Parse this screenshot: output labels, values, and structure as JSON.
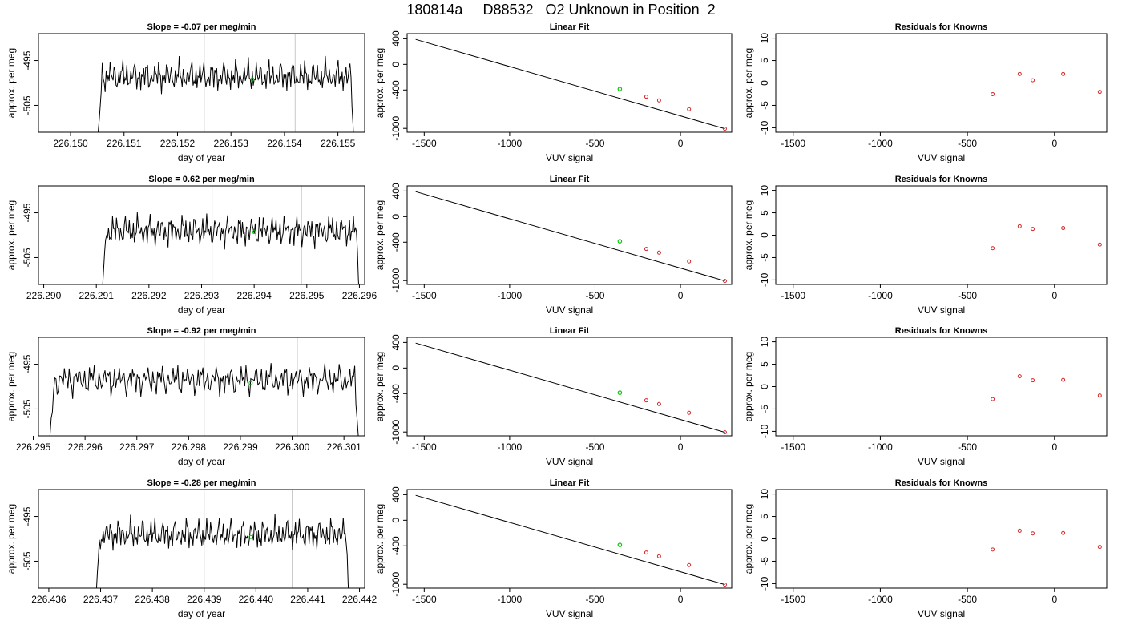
{
  "figure_title": "180814a     D88532   O2 Unknown in Position  2",
  "colors": {
    "trace": "#000000",
    "marker_line": "#c8c8c8",
    "known": "#d62728",
    "unknown": "#00cc00",
    "fit_line": "#000000"
  },
  "chart_data": [
    {
      "type": "line",
      "title": "Slope =  -0.07  per meg/min",
      "xlabel": "day of year",
      "ylabel": "approx. per meg",
      "xlim": [
        226.1494,
        226.1555
      ],
      "ylim": [
        -511,
        -489
      ],
      "xticks": [
        226.15,
        226.151,
        226.152,
        226.153,
        226.154,
        226.155
      ],
      "xtick_labels": [
        "226.150",
        "226.151",
        "226.152",
        "226.153",
        "226.154",
        "226.155"
      ],
      "yticks": [
        -495,
        -505
      ],
      "ytick_labels": [
        "-495",
        "-505"
      ],
      "trace_start": 226.1505,
      "trace_end": 226.1553,
      "trace_level": -498.5,
      "vlines": [
        226.1525,
        226.1542
      ],
      "unknown_point": [
        226.1534,
        -499.2
      ]
    },
    {
      "type": "scatter",
      "title": "Linear Fit",
      "xlabel": "VUV signal",
      "ylabel": "approx. per meg",
      "xlim": [
        -1600,
        300
      ],
      "ylim": [
        -1060,
        480
      ],
      "xticks": [
        -1500,
        -1000,
        -500,
        0
      ],
      "xtick_labels": [
        "-1500",
        "-1000",
        "-500",
        "0"
      ],
      "yticks": [
        400,
        0,
        -400,
        -1000
      ],
      "ytick_labels": [
        "400",
        "0",
        "-400",
        "-1000"
      ],
      "line": [
        [
          -1550,
          390
        ],
        [
          260,
          -1005
        ]
      ],
      "knowns": [
        [
          -200,
          -505
        ],
        [
          -125,
          -563
        ],
        [
          50,
          -700
        ],
        [
          260,
          -1005
        ]
      ],
      "unknown": [
        [
          -355,
          -385
        ]
      ]
    },
    {
      "type": "scatter",
      "title": "Residuals for Knowns",
      "xlabel": "VUV signal",
      "ylabel": "approx. per meg",
      "xlim": [
        -1600,
        300
      ],
      "ylim": [
        -11,
        11
      ],
      "xticks": [
        -1500,
        -1000,
        -500,
        0
      ],
      "xtick_labels": [
        "-1500",
        "-1000",
        "-500",
        "0"
      ],
      "yticks": [
        10,
        5,
        0,
        -5,
        -10
      ],
      "ytick_labels": [
        "10",
        "5",
        "0",
        "-5",
        "-10"
      ],
      "points": [
        [
          -355,
          -2.5
        ],
        [
          -200,
          2.0
        ],
        [
          -125,
          0.6
        ],
        [
          50,
          2.0
        ],
        [
          260,
          -2.0
        ]
      ]
    },
    {
      "type": "line",
      "title": "Slope =  0.62  per meg/min",
      "xlabel": "day of year",
      "ylabel": "approx. per meg",
      "xlim": [
        226.2899,
        226.2961
      ],
      "ylim": [
        -511,
        -489
      ],
      "xticks": [
        226.29,
        226.291,
        226.292,
        226.293,
        226.294,
        226.295,
        226.296
      ],
      "xtick_labels": [
        "226.290",
        "226.291",
        "226.292",
        "226.293",
        "226.294",
        "226.295",
        "226.296"
      ],
      "yticks": [
        -495,
        -505
      ],
      "ytick_labels": [
        "-495",
        "-505"
      ],
      "trace_start": 226.2911,
      "trace_end": 226.296,
      "trace_level": -499.0,
      "vlines": [
        226.2932,
        226.2949
      ],
      "unknown_point": [
        226.294,
        -499.3
      ]
    },
    {
      "type": "scatter",
      "title": "Linear Fit",
      "xlabel": "VUV signal",
      "ylabel": "approx. per meg",
      "xlim": [
        -1600,
        300
      ],
      "ylim": [
        -1060,
        480
      ],
      "xticks": [
        -1500,
        -1000,
        -500,
        0
      ],
      "xtick_labels": [
        "-1500",
        "-1000",
        "-500",
        "0"
      ],
      "yticks": [
        400,
        0,
        -400,
        -1000
      ],
      "ytick_labels": [
        "400",
        "0",
        "-400",
        "-1000"
      ],
      "line": [
        [
          -1550,
          390
        ],
        [
          260,
          -1005
        ]
      ],
      "knowns": [
        [
          -200,
          -505
        ],
        [
          -125,
          -563
        ],
        [
          50,
          -700
        ],
        [
          260,
          -1005
        ]
      ],
      "unknown": [
        [
          -355,
          -385
        ]
      ]
    },
    {
      "type": "scatter",
      "title": "Residuals for Knowns",
      "xlabel": "VUV signal",
      "ylabel": "approx. per meg",
      "xlim": [
        -1600,
        300
      ],
      "ylim": [
        -11,
        11
      ],
      "xticks": [
        -1500,
        -1000,
        -500,
        0
      ],
      "xtick_labels": [
        "-1500",
        "-1000",
        "-500",
        "0"
      ],
      "yticks": [
        10,
        5,
        0,
        -5,
        -10
      ],
      "ytick_labels": [
        "10",
        "5",
        "0",
        "-5",
        "-10"
      ],
      "points": [
        [
          -355,
          -2.9
        ],
        [
          -200,
          2.0
        ],
        [
          -125,
          1.4
        ],
        [
          50,
          1.6
        ],
        [
          260,
          -2.1
        ]
      ]
    },
    {
      "type": "line",
      "title": "Slope =  -0.92  per meg/min",
      "xlabel": "day of year",
      "ylabel": "approx. per meg",
      "xlim": [
        226.2951,
        226.3014
      ],
      "ylim": [
        -511,
        -489
      ],
      "xticks": [
        226.295,
        226.296,
        226.297,
        226.298,
        226.299,
        226.3,
        226.301
      ],
      "xtick_labels": [
        "226.295",
        "226.296",
        "226.297",
        "226.298",
        "226.299",
        "226.300",
        "226.301"
      ],
      "yticks": [
        -495,
        -505
      ],
      "ytick_labels": [
        "-495",
        "-505"
      ],
      "trace_start": 226.2953,
      "trace_end": 226.3013,
      "trace_level": -498.5,
      "vlines": [
        226.2983,
        226.3001
      ],
      "unknown_point": [
        226.2992,
        -499.2
      ]
    },
    {
      "type": "scatter",
      "title": "Linear Fit",
      "xlabel": "VUV signal",
      "ylabel": "approx. per meg",
      "xlim": [
        -1600,
        300
      ],
      "ylim": [
        -1060,
        480
      ],
      "xticks": [
        -1500,
        -1000,
        -500,
        0
      ],
      "xtick_labels": [
        "-1500",
        "-1000",
        "-500",
        "0"
      ],
      "yticks": [
        400,
        0,
        -400,
        -1000
      ],
      "ytick_labels": [
        "400",
        "0",
        "-400",
        "-1000"
      ],
      "line": [
        [
          -1550,
          390
        ],
        [
          260,
          -1005
        ]
      ],
      "knowns": [
        [
          -200,
          -505
        ],
        [
          -125,
          -563
        ],
        [
          50,
          -700
        ],
        [
          260,
          -1005
        ]
      ],
      "unknown": [
        [
          -355,
          -385
        ]
      ]
    },
    {
      "type": "scatter",
      "title": "Residuals for Knowns",
      "xlabel": "VUV signal",
      "ylabel": "approx. per meg",
      "xlim": [
        -1600,
        300
      ],
      "ylim": [
        -11,
        11
      ],
      "xticks": [
        -1500,
        -1000,
        -500,
        0
      ],
      "xtick_labels": [
        "-1500",
        "-1000",
        "-500",
        "0"
      ],
      "yticks": [
        10,
        5,
        0,
        -5,
        -10
      ],
      "ytick_labels": [
        "10",
        "5",
        "0",
        "-5",
        "-10"
      ],
      "points": [
        [
          -355,
          -2.8
        ],
        [
          -200,
          2.3
        ],
        [
          -125,
          1.4
        ],
        [
          50,
          1.5
        ],
        [
          260,
          -2.0
        ]
      ]
    },
    {
      "type": "line",
      "title": "Slope =  -0.28  per meg/min",
      "xlabel": "day of year",
      "ylabel": "approx. per meg",
      "xlim": [
        226.4358,
        226.4421
      ],
      "ylim": [
        -511,
        -489
      ],
      "xticks": [
        226.436,
        226.437,
        226.438,
        226.439,
        226.44,
        226.441,
        226.442
      ],
      "xtick_labels": [
        "226.436",
        "226.437",
        "226.438",
        "226.439",
        "226.440",
        "226.441",
        "226.442"
      ],
      "yticks": [
        -495,
        -505
      ],
      "ytick_labels": [
        "-495",
        "-505"
      ],
      "trace_start": 226.4369,
      "trace_end": 226.4418,
      "trace_level": -499.0,
      "vlines": [
        226.439,
        226.4407
      ],
      "unknown_point": [
        226.4399,
        -499.6
      ]
    },
    {
      "type": "scatter",
      "title": "Linear Fit",
      "xlabel": "VUV signal",
      "ylabel": "approx. per meg",
      "xlim": [
        -1600,
        300
      ],
      "ylim": [
        -1060,
        480
      ],
      "xticks": [
        -1500,
        -1000,
        -500,
        0
      ],
      "xtick_labels": [
        "-1500",
        "-1000",
        "-500",
        "0"
      ],
      "yticks": [
        400,
        0,
        -400,
        -1000
      ],
      "ytick_labels": [
        "400",
        "0",
        "-400",
        "-1000"
      ],
      "line": [
        [
          -1550,
          390
        ],
        [
          260,
          -1005
        ]
      ],
      "knowns": [
        [
          -200,
          -505
        ],
        [
          -125,
          -563
        ],
        [
          50,
          -700
        ],
        [
          260,
          -1005
        ]
      ],
      "unknown": [
        [
          -355,
          -385
        ]
      ]
    },
    {
      "type": "scatter",
      "title": "Residuals for Knowns",
      "xlabel": "VUV signal",
      "ylabel": "approx. per meg",
      "xlim": [
        -1600,
        300
      ],
      "ylim": [
        -11,
        11
      ],
      "xticks": [
        -1500,
        -1000,
        -500,
        0
      ],
      "xtick_labels": [
        "-1500",
        "-1000",
        "-500",
        "0"
      ],
      "yticks": [
        10,
        5,
        0,
        -5,
        -10
      ],
      "ytick_labels": [
        "10",
        "5",
        "0",
        "-5",
        "-10"
      ],
      "points": [
        [
          -355,
          -2.4
        ],
        [
          -200,
          1.8
        ],
        [
          -125,
          1.2
        ],
        [
          50,
          1.3
        ],
        [
          260,
          -1.8
        ]
      ]
    }
  ]
}
